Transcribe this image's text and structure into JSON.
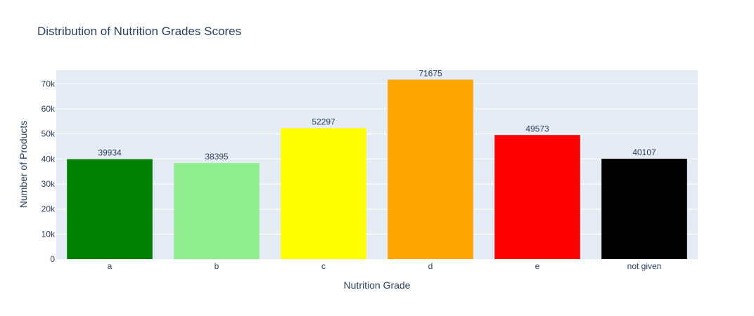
{
  "chart_data": {
    "type": "bar",
    "title": "Distribution of Nutrition Grades Scores",
    "xlabel": "Nutrition Grade",
    "ylabel": "Number of Products",
    "categories": [
      "a",
      "b",
      "c",
      "d",
      "e",
      "not given"
    ],
    "values": [
      39934,
      38395,
      52297,
      71675,
      49573,
      40107
    ],
    "colors": [
      "#008000",
      "#90ee90",
      "#ffff00",
      "#ffa500",
      "#ff0000",
      "#000000"
    ],
    "ylim": [
      0,
      75447
    ],
    "yticks": [
      0,
      10000,
      20000,
      30000,
      40000,
      50000,
      60000,
      70000
    ],
    "ytick_labels": [
      "0",
      "10k",
      "20k",
      "30k",
      "40k",
      "50k",
      "60k",
      "70k"
    ],
    "grid": true,
    "plot_background": "#e5ecf6",
    "data_labels": "outside"
  }
}
